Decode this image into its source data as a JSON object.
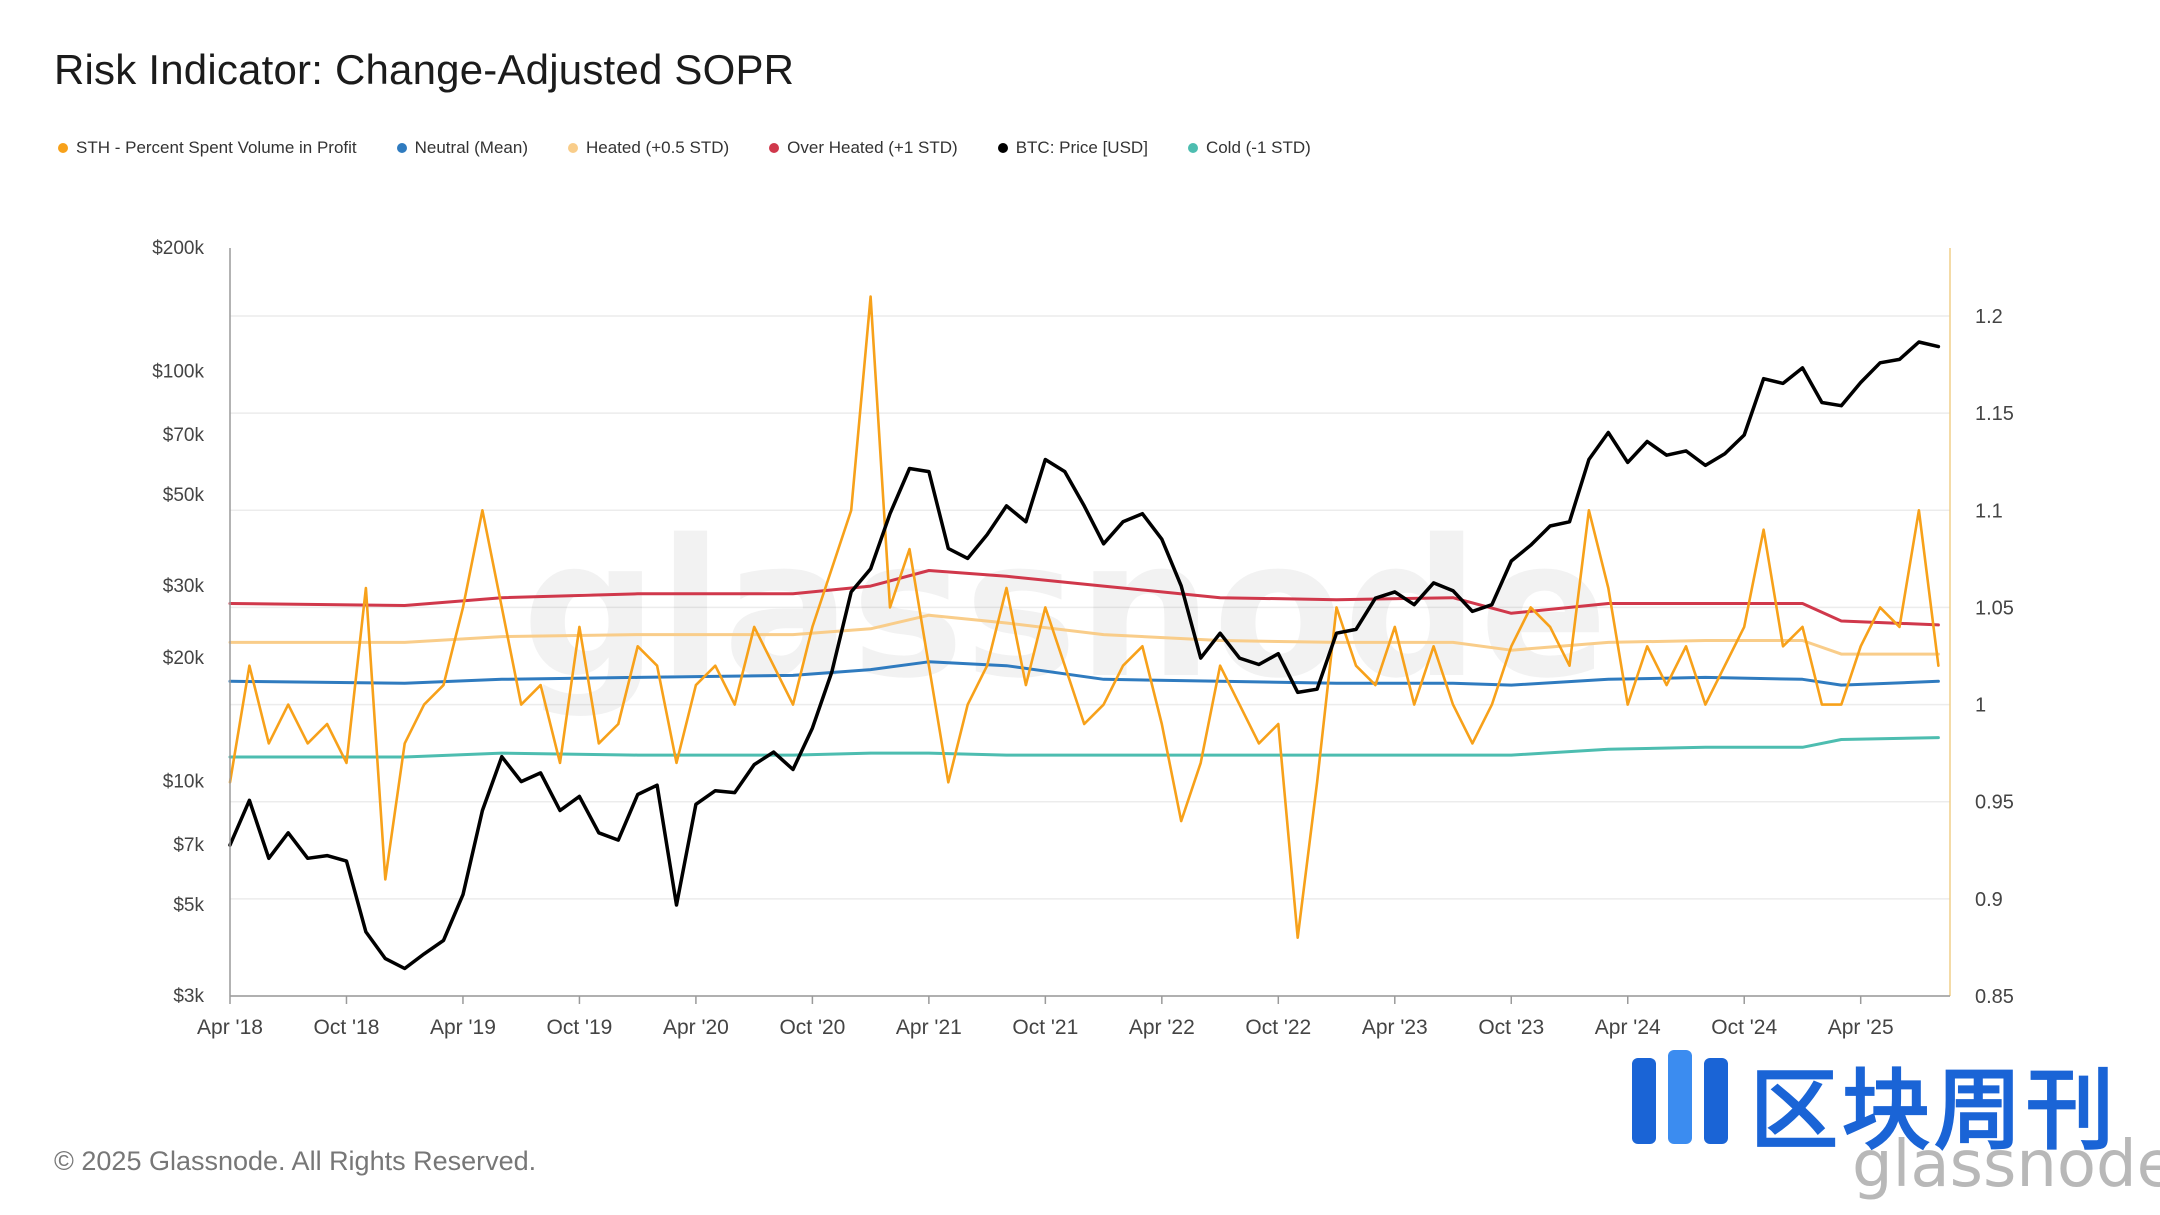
{
  "title": "Risk Indicator: Change-Adjusted SOPR",
  "legend": [
    {
      "label": "STH - Percent Spent Volume in Profit",
      "color": "#f7a11a"
    },
    {
      "label": "Neutral (Mean)",
      "color": "#2f7bbf"
    },
    {
      "label": "Heated (+0.5 STD)",
      "color": "#f9cd8a"
    },
    {
      "label": "Over Heated (+1 STD)",
      "color": "#d0384b"
    },
    {
      "label": "BTC: Price [USD]",
      "color": "#000000"
    },
    {
      "label": "Cold (-1 STD)",
      "color": "#4dbdb0"
    }
  ],
  "watermark": "glassnode",
  "copyright": "© 2025 Glassnode. All Rights Reserved.",
  "logo": {
    "cn_text": "区块周刊",
    "brand": "glassnode"
  },
  "chart_data": {
    "type": "line",
    "title": "Risk Indicator: Change-Adjusted SOPR",
    "x_ticks": [
      "Apr '18",
      "Oct '18",
      "Apr '19",
      "Oct '19",
      "Apr '20",
      "Oct '20",
      "Apr '21",
      "Oct '21",
      "Apr '22",
      "Oct '22",
      "Apr '23",
      "Oct '23",
      "Apr '24",
      "Oct '24",
      "Apr '25"
    ],
    "x_range": [
      "2018-04",
      "2025-08"
    ],
    "y_left": {
      "label": "BTC: Price [USD]",
      "scale": "log",
      "ticks": [
        "$3k",
        "$5k",
        "$7k",
        "$10k",
        "$20k",
        "$30k",
        "$50k",
        "$70k",
        "$100k",
        "$200k"
      ],
      "tick_values": [
        3000,
        5000,
        7000,
        10000,
        20000,
        30000,
        50000,
        70000,
        100000,
        200000
      ],
      "range": [
        3000,
        200000
      ]
    },
    "y_right": {
      "scale": "linear",
      "ticks": [
        "0.85",
        "0.9",
        "0.95",
        "1",
        "1.05",
        "1.1",
        "1.15",
        "1.2"
      ],
      "tick_values": [
        0.85,
        0.9,
        0.95,
        1.0,
        1.05,
        1.1,
        1.15,
        1.2
      ],
      "range": [
        0.85,
        1.235
      ]
    },
    "grid": "horizontal",
    "series": [
      {
        "name": "BTC: Price [USD]",
        "axis": "left",
        "color": "#000000",
        "x": [
          "2018-04",
          "2018-05",
          "2018-06",
          "2018-07",
          "2018-08",
          "2018-09",
          "2018-10",
          "2018-11",
          "2018-12",
          "2019-01",
          "2019-02",
          "2019-03",
          "2019-04",
          "2019-05",
          "2019-06",
          "2019-07",
          "2019-08",
          "2019-09",
          "2019-10",
          "2019-11",
          "2019-12",
          "2020-01",
          "2020-02",
          "2020-03",
          "2020-04",
          "2020-05",
          "2020-06",
          "2020-07",
          "2020-08",
          "2020-09",
          "2020-10",
          "2020-11",
          "2020-12",
          "2021-01",
          "2021-02",
          "2021-03",
          "2021-04",
          "2021-05",
          "2021-06",
          "2021-07",
          "2021-08",
          "2021-09",
          "2021-10",
          "2021-11",
          "2021-12",
          "2022-01",
          "2022-02",
          "2022-03",
          "2022-04",
          "2022-05",
          "2022-06",
          "2022-07",
          "2022-08",
          "2022-09",
          "2022-10",
          "2022-11",
          "2022-12",
          "2023-01",
          "2023-02",
          "2023-03",
          "2023-04",
          "2023-05",
          "2023-06",
          "2023-07",
          "2023-08",
          "2023-09",
          "2023-10",
          "2023-11",
          "2023-12",
          "2024-01",
          "2024-02",
          "2024-03",
          "2024-04",
          "2024-05",
          "2024-06",
          "2024-07",
          "2024-08",
          "2024-09",
          "2024-10",
          "2024-11",
          "2024-12",
          "2025-01",
          "2025-02",
          "2025-03",
          "2025-04",
          "2025-05",
          "2025-06",
          "2025-07",
          "2025-08"
        ],
        "y": [
          7000,
          9000,
          6500,
          7500,
          6500,
          6600,
          6400,
          4300,
          3700,
          3500,
          3800,
          4100,
          5300,
          8500,
          11500,
          10000,
          10500,
          8500,
          9200,
          7500,
          7200,
          9300,
          9800,
          5000,
          8800,
          9500,
          9400,
          11000,
          11800,
          10700,
          13500,
          18500,
          29000,
          33000,
          45000,
          58000,
          57000,
          37000,
          35000,
          40000,
          47000,
          43000,
          61000,
          57000,
          47000,
          38000,
          43000,
          45000,
          39000,
          30000,
          20000,
          23000,
          20000,
          19300,
          20500,
          16500,
          16800,
          23000,
          23500,
          28000,
          29000,
          27000,
          30500,
          29200,
          26000,
          27000,
          34500,
          37700,
          42000,
          43000,
          61000,
          71000,
          60000,
          67500,
          62500,
          64000,
          59000,
          63000,
          70000,
          96000,
          93500,
          102000,
          84000,
          82500,
          94000,
          105000,
          107000,
          118000,
          115000
        ]
      },
      {
        "name": "STH - Percent Spent Volume in Profit",
        "axis": "right",
        "color": "#f7a11a",
        "x": [
          "2018-04",
          "2018-05",
          "2018-06",
          "2018-07",
          "2018-08",
          "2018-09",
          "2018-10",
          "2018-11",
          "2018-12",
          "2019-01",
          "2019-02",
          "2019-03",
          "2019-04",
          "2019-05",
          "2019-06",
          "2019-07",
          "2019-08",
          "2019-09",
          "2019-10",
          "2019-11",
          "2019-12",
          "2020-01",
          "2020-02",
          "2020-03",
          "2020-04",
          "2020-05",
          "2020-06",
          "2020-07",
          "2020-08",
          "2020-09",
          "2020-10",
          "2020-11",
          "2020-12",
          "2021-01",
          "2021-02",
          "2021-03",
          "2021-04",
          "2021-05",
          "2021-06",
          "2021-07",
          "2021-08",
          "2021-09",
          "2021-10",
          "2021-11",
          "2021-12",
          "2022-01",
          "2022-02",
          "2022-03",
          "2022-04",
          "2022-05",
          "2022-06",
          "2022-07",
          "2022-08",
          "2022-09",
          "2022-10",
          "2022-11",
          "2022-12",
          "2023-01",
          "2023-02",
          "2023-03",
          "2023-04",
          "2023-05",
          "2023-06",
          "2023-07",
          "2023-08",
          "2023-09",
          "2023-10",
          "2023-11",
          "2023-12",
          "2024-01",
          "2024-02",
          "2024-03",
          "2024-04",
          "2024-05",
          "2024-06",
          "2024-07",
          "2024-08",
          "2024-09",
          "2024-10",
          "2024-11",
          "2024-12",
          "2025-01",
          "2025-02",
          "2025-03",
          "2025-04",
          "2025-05",
          "2025-06",
          "2025-07",
          "2025-08"
        ],
        "y": [
          0.96,
          1.02,
          0.98,
          1.0,
          0.98,
          0.99,
          0.97,
          1.06,
          0.91,
          0.98,
          1.0,
          1.01,
          1.05,
          1.1,
          1.05,
          1.0,
          1.01,
          0.97,
          1.04,
          0.98,
          0.99,
          1.03,
          1.02,
          0.97,
          1.01,
          1.02,
          1.0,
          1.04,
          1.02,
          1.0,
          1.04,
          1.07,
          1.1,
          1.21,
          1.05,
          1.08,
          1.02,
          0.96,
          1.0,
          1.02,
          1.06,
          1.01,
          1.05,
          1.02,
          0.99,
          1.0,
          1.02,
          1.03,
          0.99,
          0.94,
          0.97,
          1.02,
          1.0,
          0.98,
          0.99,
          0.88,
          0.96,
          1.05,
          1.02,
          1.01,
          1.04,
          1.0,
          1.03,
          1.0,
          0.98,
          1.0,
          1.03,
          1.05,
          1.04,
          1.02,
          1.1,
          1.06,
          1.0,
          1.03,
          1.01,
          1.03,
          1.0,
          1.02,
          1.04,
          1.09,
          1.03,
          1.04,
          1.0,
          1.0,
          1.03,
          1.05,
          1.04,
          1.1,
          1.02
        ]
      },
      {
        "name": "Over Heated (+1 STD)",
        "axis": "right",
        "color": "#d0384b",
        "x": [
          "2018-04",
          "2019-01",
          "2019-06",
          "2020-01",
          "2020-09",
          "2021-01",
          "2021-04",
          "2021-08",
          "2022-01",
          "2022-07",
          "2023-01",
          "2023-07",
          "2023-10",
          "2024-03",
          "2024-08",
          "2025-01",
          "2025-03",
          "2025-08"
        ],
        "y": [
          1.052,
          1.051,
          1.055,
          1.057,
          1.057,
          1.061,
          1.069,
          1.066,
          1.061,
          1.055,
          1.054,
          1.055,
          1.047,
          1.052,
          1.052,
          1.052,
          1.043,
          1.041
        ]
      },
      {
        "name": "Heated (+0.5 STD)",
        "axis": "right",
        "color": "#f9cd8a",
        "x": [
          "2018-04",
          "2019-01",
          "2019-06",
          "2020-01",
          "2020-09",
          "2021-01",
          "2021-04",
          "2021-08",
          "2022-01",
          "2022-07",
          "2023-01",
          "2023-07",
          "2023-10",
          "2024-03",
          "2024-08",
          "2025-01",
          "2025-03",
          "2025-08"
        ],
        "y": [
          1.032,
          1.032,
          1.035,
          1.036,
          1.036,
          1.039,
          1.046,
          1.042,
          1.036,
          1.033,
          1.032,
          1.032,
          1.028,
          1.032,
          1.033,
          1.033,
          1.026,
          1.026
        ]
      },
      {
        "name": "Neutral (Mean)",
        "axis": "right",
        "color": "#2f7bbf",
        "x": [
          "2018-04",
          "2019-01",
          "2019-06",
          "2020-01",
          "2020-09",
          "2021-01",
          "2021-04",
          "2021-08",
          "2022-01",
          "2022-07",
          "2023-01",
          "2023-07",
          "2023-10",
          "2024-03",
          "2024-08",
          "2025-01",
          "2025-03",
          "2025-08"
        ],
        "y": [
          1.012,
          1.011,
          1.013,
          1.014,
          1.015,
          1.018,
          1.022,
          1.02,
          1.013,
          1.012,
          1.011,
          1.011,
          1.01,
          1.013,
          1.014,
          1.013,
          1.01,
          1.012
        ]
      },
      {
        "name": "Cold (-1 STD)",
        "axis": "right",
        "color": "#4dbdb0",
        "x": [
          "2018-04",
          "2019-01",
          "2019-06",
          "2020-01",
          "2020-09",
          "2021-01",
          "2021-04",
          "2021-08",
          "2022-01",
          "2022-07",
          "2023-01",
          "2023-07",
          "2023-10",
          "2024-03",
          "2024-08",
          "2025-01",
          "2025-03",
          "2025-08"
        ],
        "y": [
          0.973,
          0.973,
          0.975,
          0.974,
          0.974,
          0.975,
          0.975,
          0.974,
          0.974,
          0.974,
          0.974,
          0.974,
          0.974,
          0.977,
          0.978,
          0.978,
          0.982,
          0.983
        ]
      }
    ]
  }
}
